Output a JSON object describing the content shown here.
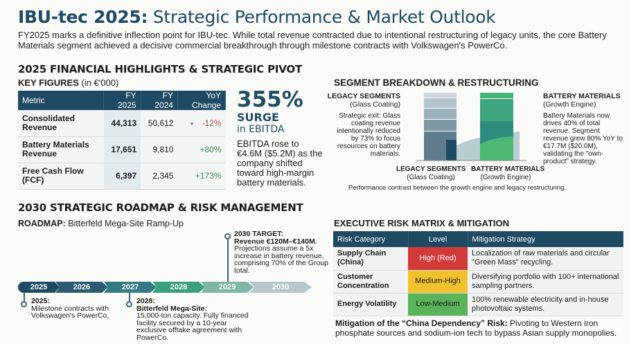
{
  "header": {
    "title_bold": "IBU-tec 2025:",
    "title_rest": " Strategic Performance & Market Outlook",
    "intro": "FY2025 marks a definitive inflection point for IBU-tec. While total revenue contracted due to intentional restructuring of legacy units, the core Battery Materials segment achieved a decisive commercial breakthrough through milestone contracts with Volkswagen's PowerCo."
  },
  "financial": {
    "heading": "2025 FINANCIAL HIGHLIGHTS & STRATEGIC PIVOT",
    "kf_bold": "KEY FIGURES",
    "kf_unit": " (in €'000)",
    "columns": [
      "Metric",
      "FY 2025",
      "FY 2024",
      "YoY Change"
    ],
    "rows": [
      {
        "metric": "Consolidated Revenue",
        "fy2025": "44,313",
        "fy2024": "50,612",
        "yoy": "-12%",
        "trend": "down"
      },
      {
        "metric": "Battery Materials Revenue",
        "fy2025": "17,651",
        "fy2024": "9,810",
        "yoy": "+80%",
        "trend": "up"
      },
      {
        "metric": "Free Cash Flow (FCF)",
        "fy2025": "6,397",
        "fy2024": "2,345",
        "yoy": "+173%",
        "trend": "up"
      }
    ],
    "ebitda": {
      "big": "355%",
      "surge": "SURGE",
      "in": "in EBITDA",
      "text": "EBITDA rose to €4.6M ($5.2M) as the company shifted toward high-margin battery materials."
    }
  },
  "segment": {
    "heading": "SEGMENT BREAKDOWN & RESTRUCTURING",
    "legacy": {
      "title": "LEGACY SEGMENTS",
      "sub": "(Glass Coating)",
      "text": "Strategic exit: Glass coating revenue intentionally reduced by 73% to focus resources on battery materials."
    },
    "battery": {
      "title": "BATTERY MATERIALS",
      "sub": "(Growth Engine)",
      "text": "Battery Materials now drives 40% of total revenue. Segment revenue grew 80% YoY to €17.7M ($20.0M), validating the \"own-product\" strategy."
    },
    "caption": "Performance contrast between the growth engine and legacy restructuring.",
    "colors": {
      "legacy": "#5f7d8c",
      "battery": "#3fae74"
    }
  },
  "roadmap": {
    "heading": "2030 STRATEGIC ROADMAP & RISK MANAGEMENT",
    "sub_bold": "ROADMAP:",
    "sub_rest": " Bitterfeld Mega-Site Ramp-Up",
    "years": [
      "2025",
      "2026",
      "2027",
      "2028",
      "2029",
      "2030"
    ],
    "target": {
      "title": "2030 TARGET:",
      "bold": "Revenue €120M–€140M.",
      "text": "Projections assume a 5x increase in battery revenue, comprising 70% of the Group total."
    },
    "m2025": {
      "title": "2025:",
      "text": "Milestone contracts with Volkswagen's PowerCo."
    },
    "m2028": {
      "title": "2028:",
      "bold": "Bitterfeld Mega-Site:",
      "text": "15,000-ton capacity. Fully financed facility secured by a 10-year exclusive offtake agreement with PowerCo."
    }
  },
  "risk": {
    "heading": "EXECUTIVE RISK MATRIX & MITIGATION",
    "columns": [
      "Risk Category",
      "Level",
      "Mitigation Strategy"
    ],
    "rows": [
      {
        "category": "Supply Chain (China)",
        "level": "High (Red)",
        "color": "#d23a3a",
        "text_color": "#ffffff",
        "strategy": "Localization of raw materials and circular \"Green Mass\" recycling."
      },
      {
        "category": "Customer Concentration",
        "level": "Medium-High",
        "color": "#f2c12e",
        "text_color": "#1c1c1c",
        "strategy": "Diversifying portfolio with 100+ international sampling partners."
      },
      {
        "category": "Energy Volatility",
        "level": "Low-Medium",
        "color": "#5bb35b",
        "text_color": "#1c1c1c",
        "strategy": "100% renewable electricity and in-house photovoltaic systems."
      }
    ],
    "note_bold": "Mitigation of the “China Dependency” Risk:",
    "note_rest": " Pivoting to Western iron phosphate sources and sodium-ion tech to bypass Asian supply monopolies."
  }
}
